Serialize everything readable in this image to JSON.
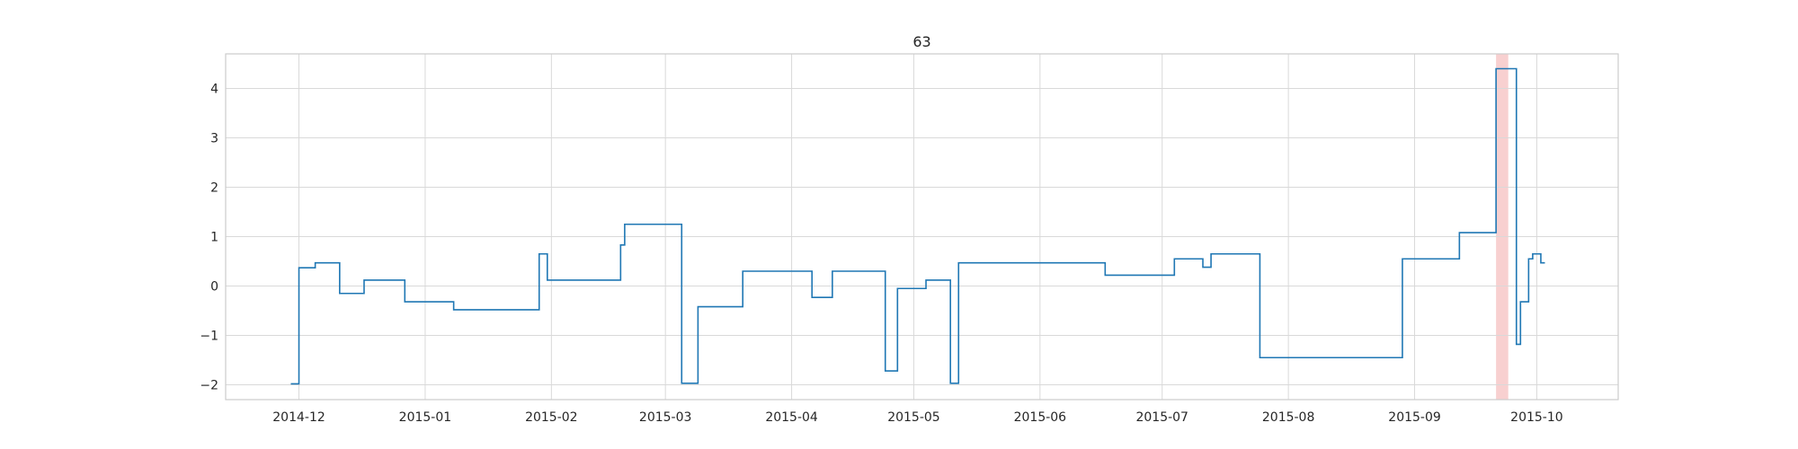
{
  "chart_data": {
    "type": "line",
    "title": "63",
    "xlabel": "",
    "ylabel": "",
    "xlim": [
      "2014-11-13",
      "2015-10-21"
    ],
    "ylim": [
      -2.3,
      4.7
    ],
    "grid": true,
    "x_ticks": [
      "2014-12-01",
      "2015-01-01",
      "2015-02-01",
      "2015-03-01",
      "2015-04-01",
      "2015-05-01",
      "2015-06-01",
      "2015-07-01",
      "2015-08-01",
      "2015-09-01",
      "2015-10-01"
    ],
    "x_tick_labels": [
      "2014-12",
      "2015-01",
      "2015-02",
      "2015-03",
      "2015-04",
      "2015-05",
      "2015-06",
      "2015-07",
      "2015-08",
      "2015-09",
      "2015-10"
    ],
    "y_ticks": [
      -2,
      -1,
      0,
      1,
      2,
      3,
      4
    ],
    "y_tick_labels": [
      "−2",
      "−1",
      "0",
      "1",
      "2",
      "3",
      "4"
    ],
    "highlight": {
      "x_start": "2015-09-21",
      "x_end": "2015-09-24",
      "color": "#f8d0d0"
    },
    "series": [
      {
        "color": "#1f77b4",
        "step": "post",
        "points": [
          [
            "2014-11-29",
            -1.98
          ],
          [
            "2014-12-01",
            0.37
          ],
          [
            "2014-12-05",
            0.47
          ],
          [
            "2014-12-11",
            -0.15
          ],
          [
            "2014-12-17",
            0.12
          ],
          [
            "2014-12-27",
            -0.32
          ],
          [
            "2015-01-08",
            -0.48
          ],
          [
            "2015-01-29",
            0.65
          ],
          [
            "2015-01-31",
            0.12
          ],
          [
            "2015-02-18",
            0.83
          ],
          [
            "2015-02-19",
            1.25
          ],
          [
            "2015-03-05",
            -1.97
          ],
          [
            "2015-03-09",
            -0.42
          ],
          [
            "2015-03-20",
            0.3
          ],
          [
            "2015-04-06",
            -0.23
          ],
          [
            "2015-04-11",
            0.3
          ],
          [
            "2015-04-24",
            -1.72
          ],
          [
            "2015-04-27",
            -0.05
          ],
          [
            "2015-05-04",
            0.12
          ],
          [
            "2015-05-10",
            -1.97
          ],
          [
            "2015-05-12",
            0.47
          ],
          [
            "2015-05-17",
            0.47
          ],
          [
            "2015-06-17",
            0.22
          ],
          [
            "2015-07-04",
            0.55
          ],
          [
            "2015-07-11",
            0.38
          ],
          [
            "2015-07-13",
            0.65
          ],
          [
            "2015-07-25",
            -1.45
          ],
          [
            "2015-08-29",
            0.55
          ],
          [
            "2015-09-12",
            1.08
          ],
          [
            "2015-09-21",
            4.4
          ],
          [
            "2015-09-26",
            -1.18
          ],
          [
            "2015-09-27",
            -0.32
          ],
          [
            "2015-09-29",
            0.55
          ],
          [
            "2015-09-30",
            0.65
          ],
          [
            "2015-10-02",
            0.47
          ],
          [
            "2015-10-03",
            0.47
          ]
        ]
      }
    ]
  }
}
